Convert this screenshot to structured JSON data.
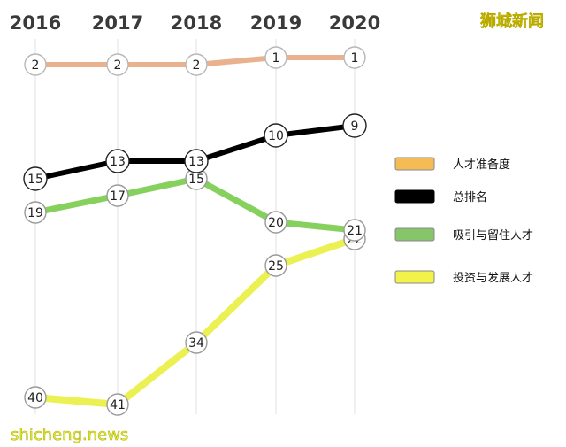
{
  "chart_data": {
    "type": "line",
    "x": [
      "2016",
      "2017",
      "2018",
      "2019",
      "2020"
    ],
    "series": [
      {
        "name": "人才准备度",
        "values": [
          2,
          2,
          2,
          1,
          1
        ],
        "color": "#e8a882",
        "legend_color": "#f3bc55"
      },
      {
        "name": "总排名",
        "values": [
          15,
          13,
          13,
          10,
          9
        ],
        "color": "#000000",
        "legend_color": "#000000"
      },
      {
        "name": "吸引与留住人才",
        "values": [
          19,
          17,
          15,
          20,
          21
        ],
        "color": "#79cc4c",
        "legend_color": "#86c56a"
      },
      {
        "name": "投资与发展人才",
        "values": [
          40,
          41,
          34,
          25,
          22
        ],
        "color": "#eaf040",
        "legend_color": "#f2f24a"
      }
    ],
    "y_inverted": true,
    "grid": "vertical",
    "legend_position": "right"
  },
  "watermark": "狮城新闻",
  "site_label": "shicheng.news"
}
